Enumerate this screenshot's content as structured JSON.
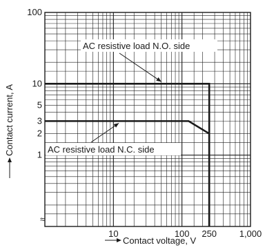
{
  "chart_data": {
    "type": "line",
    "x_scale": "log",
    "y_scale": "log",
    "xlim": [
      1,
      1000
    ],
    "ylim": [
      0.1,
      100
    ],
    "x_ticks": [
      {
        "value": 10,
        "label": "10"
      },
      {
        "value": 100,
        "label": "100"
      },
      {
        "value": 250,
        "label": "250"
      },
      {
        "value": 1000,
        "label": "1,000"
      }
    ],
    "y_ticks": [
      {
        "value": 1,
        "label": "1"
      },
      {
        "value": 2,
        "label": "2"
      },
      {
        "value": 3,
        "label": "3"
      },
      {
        "value": 5,
        "label": "5"
      },
      {
        "value": 10,
        "label": "10"
      },
      {
        "value": 100,
        "label": "100"
      }
    ],
    "origin_symbol": "≈",
    "xlabel": "Contact voltage, V",
    "ylabel": "Contact current, A",
    "grid": true,
    "series": [
      {
        "name": "AC resistive load N.O. side",
        "x": [
          1,
          250,
          250
        ],
        "y": [
          10,
          10,
          0.1
        ]
      },
      {
        "name": "AC resistive load N.C. side",
        "x": [
          1,
          125,
          250,
          250
        ],
        "y": [
          3,
          3,
          2,
          0.1
        ]
      }
    ],
    "annotations": [
      {
        "text": "AC resistive load N.O. side",
        "series": 0,
        "points_to": [
          50,
          10
        ]
      },
      {
        "text": "AC resistive load N.C. side",
        "series": 1,
        "points_to": [
          12,
          3
        ]
      }
    ]
  }
}
